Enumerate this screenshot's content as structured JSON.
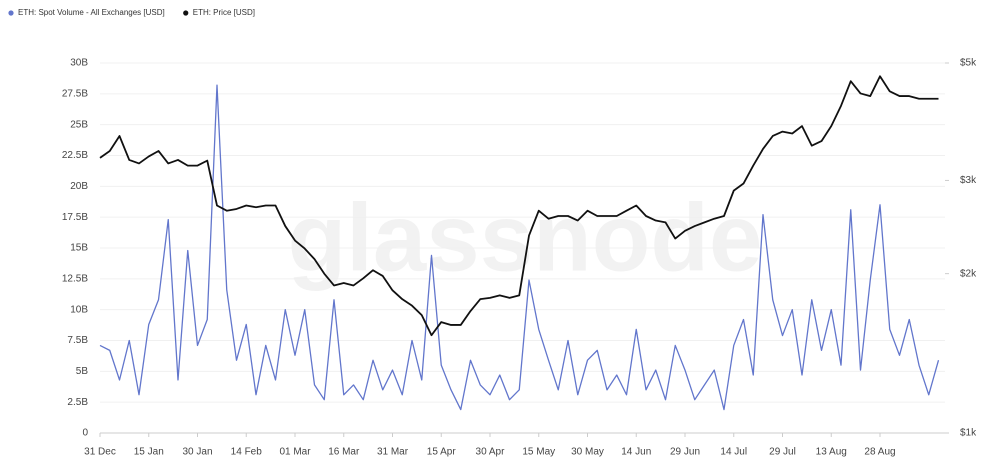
{
  "chart_data": {
    "type": "line",
    "watermark": "glassnode",
    "categories": [
      "31 Dec",
      null,
      null,
      null,
      null,
      "15 Jan",
      null,
      null,
      null,
      null,
      "30 Jan",
      null,
      null,
      null,
      null,
      "14 Feb",
      null,
      null,
      null,
      null,
      "01 Mar",
      null,
      null,
      null,
      null,
      "16 Mar",
      null,
      null,
      null,
      null,
      "31 Mar",
      null,
      null,
      null,
      null,
      "15 Apr",
      null,
      null,
      null,
      null,
      "30 Apr",
      null,
      null,
      null,
      null,
      "15 May",
      null,
      null,
      null,
      null,
      "30 May",
      null,
      null,
      null,
      null,
      "14 Jun",
      null,
      null,
      null,
      null,
      "29 Jun",
      null,
      null,
      null,
      null,
      "14 Jul",
      null,
      null,
      null,
      null,
      "29 Jul",
      null,
      null,
      null,
      null,
      "13 Aug",
      null,
      null,
      null,
      null,
      "28 Aug",
      null,
      null,
      null,
      null,
      null,
      null
    ],
    "series": [
      {
        "name": "ETH: Spot Volume - All Exchanges [USD]",
        "color": "#6276cc",
        "values": [
          7.1,
          6.7,
          4.3,
          7.5,
          3.1,
          8.8,
          10.8,
          17.3,
          4.3,
          14.8,
          7.1,
          9.2,
          28.2,
          11.6,
          5.9,
          8.8,
          3.1,
          7.1,
          4.3,
          10,
          6.3,
          10,
          3.9,
          2.7,
          10.8,
          3.1,
          3.9,
          2.7,
          5.9,
          3.5,
          5.1,
          3.1,
          7.5,
          4.3,
          14.4,
          5.5,
          3.5,
          1.9,
          5.9,
          3.9,
          3.1,
          4.7,
          2.7,
          3.5,
          12.4,
          8.4,
          5.9,
          3.5,
          7.5,
          3.1,
          5.9,
          6.7,
          3.5,
          4.7,
          3.1,
          8.4,
          3.5,
          5.1,
          2.7,
          7.1,
          5.1,
          2.7,
          3.9,
          5.1,
          1.9,
          7.1,
          9.2,
          4.7,
          17.7,
          10.8,
          7.9,
          10,
          4.7,
          10.8,
          6.7,
          10,
          5.5,
          18.1,
          5.1,
          12.4,
          18.5,
          8.4,
          6.3,
          9.2,
          5.5,
          3.1,
          5.9
        ]
      },
      {
        "name": "ETH: Price [USD]",
        "color": "#111111",
        "axis": "y2",
        "values": [
          3310,
          3410,
          3640,
          3280,
          3230,
          3330,
          3410,
          3230,
          3280,
          3200,
          3200,
          3270,
          2690,
          2630,
          2650,
          2690,
          2670,
          2690,
          2690,
          2460,
          2310,
          2230,
          2130,
          2000,
          1900,
          1920,
          1900,
          1960,
          2030,
          1980,
          1860,
          1790,
          1740,
          1670,
          1530,
          1620,
          1600,
          1600,
          1700,
          1790,
          1800,
          1820,
          1800,
          1820,
          2360,
          2630,
          2540,
          2570,
          2570,
          2520,
          2630,
          2570,
          2570,
          2570,
          2630,
          2690,
          2570,
          2520,
          2500,
          2330,
          2410,
          2460,
          2500,
          2540,
          2570,
          2870,
          2960,
          3200,
          3440,
          3640,
          3710,
          3680,
          3800,
          3490,
          3560,
          3800,
          4150,
          4620,
          4380,
          4330,
          4720,
          4420,
          4330,
          4330,
          4280,
          4280,
          4280
        ]
      }
    ],
    "ylim": [
      0,
      30
    ],
    "yticks": [
      {
        "value": 0,
        "label": "0"
      },
      {
        "value": 2.5,
        "label": "2.5B"
      },
      {
        "value": 5,
        "label": "5B"
      },
      {
        "value": 7.5,
        "label": "7.5B"
      },
      {
        "value": 10,
        "label": "10B"
      },
      {
        "value": 12.5,
        "label": "12.5B"
      },
      {
        "value": 15,
        "label": "15B"
      },
      {
        "value": 17.5,
        "label": "17.5B"
      },
      {
        "value": 20,
        "label": "20B"
      },
      {
        "value": 22.5,
        "label": "22.5B"
      },
      {
        "value": 25,
        "label": "25B"
      },
      {
        "value": 27.5,
        "label": "27.5B"
      },
      {
        "value": 30,
        "label": "30B"
      }
    ],
    "y2lim": [
      1000,
      5000
    ],
    "y2log": true,
    "y2ticks": [
      {
        "value": 1000,
        "label": "$1k"
      },
      {
        "value": 2000,
        "label": "$2k"
      },
      {
        "value": 3000,
        "label": "$3k"
      },
      {
        "value": 5000,
        "label": "$5k"
      }
    ],
    "grid": true
  }
}
